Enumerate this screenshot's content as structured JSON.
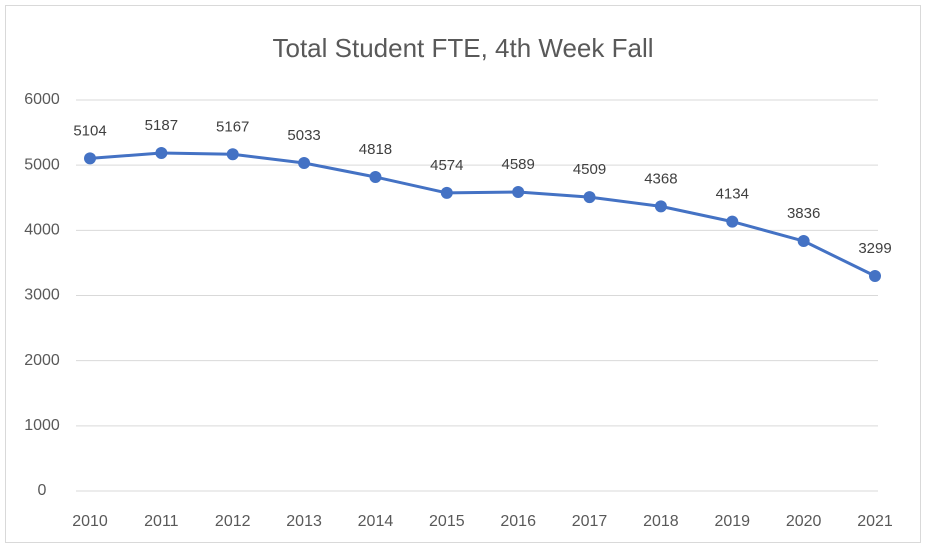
{
  "chart_data": {
    "type": "line",
    "title": "Total Student FTE, 4th Week Fall",
    "categories": [
      "2010",
      "2011",
      "2012",
      "2013",
      "2014",
      "2015",
      "2016",
      "2017",
      "2018",
      "2019",
      "2020",
      "2021"
    ],
    "values": [
      5104,
      5187,
      5167,
      5033,
      4818,
      4574,
      4589,
      4509,
      4368,
      4134,
      3836,
      3299
    ],
    "color": "#4472c4",
    "ylim": [
      0,
      6000
    ],
    "yticks": [
      0,
      1000,
      2000,
      3000,
      4000,
      5000,
      6000
    ],
    "grid": true
  }
}
